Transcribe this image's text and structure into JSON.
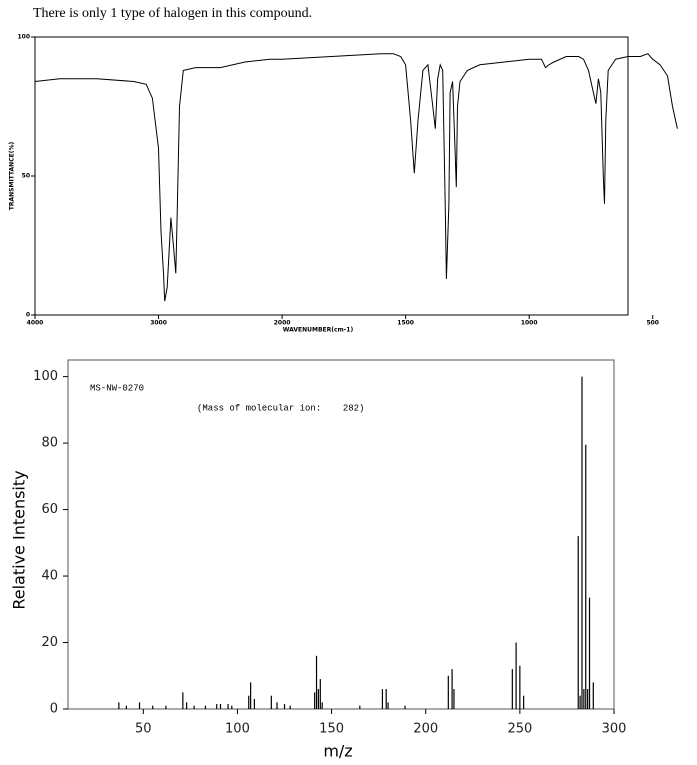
{
  "caption": "There is only 1 type of halogen in this compound.",
  "chart_data": [
    {
      "type": "line",
      "xlabel": "WAVENUMBER(cm-1)",
      "ylabel": "TRANSMITTANCE(%)",
      "color": "#000000",
      "xlim": [
        4000,
        400
      ],
      "xticks": [
        4000,
        3000,
        2000,
        1500,
        1000,
        500
      ],
      "ylim": [
        0,
        100
      ],
      "yticks": [
        0,
        50,
        100
      ],
      "x": [
        4000,
        3800,
        3500,
        3200,
        3100,
        3050,
        3000,
        2980,
        2960,
        2950,
        2930,
        2900,
        2880,
        2860,
        2850,
        2830,
        2800,
        2700,
        2500,
        2300,
        2100,
        2000,
        1800,
        1600,
        1550,
        1520,
        1500,
        1480,
        1465,
        1450,
        1430,
        1410,
        1390,
        1380,
        1370,
        1360,
        1350,
        1340,
        1335,
        1325,
        1320,
        1310,
        1300,
        1295,
        1290,
        1280,
        1250,
        1200,
        1100,
        1000,
        950,
        934,
        920,
        900,
        850,
        800,
        780,
        760,
        740,
        730,
        720,
        710,
        700,
        695,
        690,
        680,
        650,
        600,
        550,
        520,
        500,
        470,
        440,
        420,
        400
      ],
      "values": [
        84,
        85,
        85,
        84,
        83,
        78,
        60,
        30,
        15,
        5,
        10,
        35,
        25,
        15,
        35,
        75,
        88,
        89,
        89,
        91,
        92,
        92,
        93,
        94,
        94,
        93,
        90,
        70,
        51,
        70,
        88,
        90,
        75,
        67,
        85,
        90,
        88,
        40,
        13,
        40,
        80,
        84,
        60,
        46,
        75,
        84,
        88,
        90,
        91,
        92,
        92,
        89,
        90,
        91,
        93,
        93,
        92,
        88,
        80,
        76,
        85,
        80,
        50,
        40,
        70,
        88,
        92,
        93,
        93,
        94,
        92,
        90,
        86,
        75,
        67
      ]
    },
    {
      "type": "bar",
      "xlabel": "m/z",
      "ylabel": "Relative Intensity",
      "color": "#000000",
      "annotations": [
        "MS-NW-0270",
        "(Mass of molecular ion:    282)"
      ],
      "xlim": [
        10,
        300
      ],
      "xticks": [
        50,
        100,
        150,
        200,
        250,
        300
      ],
      "ylim": [
        0,
        105
      ],
      "yticks": [
        0,
        20,
        40,
        60,
        80,
        100
      ],
      "x": [
        37,
        41,
        48,
        55,
        62,
        71,
        73,
        77,
        83,
        89,
        91,
        95,
        97,
        106,
        107,
        109,
        118,
        121,
        125,
        128,
        141,
        142,
        143,
        144,
        145,
        165,
        177,
        179,
        180,
        189,
        212,
        214,
        215,
        246,
        248,
        250,
        252,
        281,
        282,
        283,
        284,
        285,
        286,
        287,
        289
      ],
      "values": [
        2,
        1,
        2,
        1,
        1,
        5,
        2,
        1,
        1,
        1.5,
        1.5,
        1.5,
        1,
        4,
        8,
        3,
        4,
        2,
        1.5,
        1,
        5,
        16,
        6,
        9,
        2,
        1,
        6,
        6,
        2,
        1,
        10,
        12,
        6,
        12,
        20,
        13,
        4,
        52,
        4,
        100,
        6,
        79.5,
        6,
        33.5,
        8
      ]
    }
  ]
}
